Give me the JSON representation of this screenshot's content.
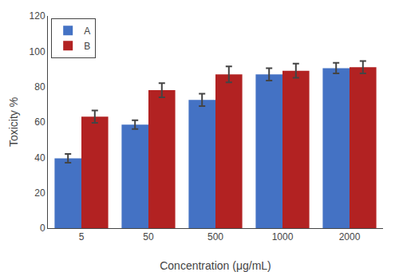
{
  "chart_data": {
    "type": "bar",
    "xlabel": "Concentration (μg/mL)",
    "ylabel": "Toxicity %",
    "categories": [
      "5",
      "50",
      "500",
      "1000",
      "2000"
    ],
    "series": [
      {
        "name": "A",
        "color": "#4472C4",
        "values": [
          39.5,
          58.5,
          72.5,
          87.0,
          90.5
        ],
        "errors": [
          2.5,
          2.5,
          3.5,
          3.5,
          3.0
        ]
      },
      {
        "name": "B",
        "color": "#B22222",
        "values": [
          63.0,
          78.0,
          87.0,
          89.0,
          91.0
        ],
        "errors": [
          3.5,
          4.0,
          4.5,
          4.0,
          3.5
        ]
      }
    ],
    "ylim": [
      0,
      120
    ],
    "yticks": [
      0,
      20,
      40,
      60,
      80,
      100,
      120
    ],
    "legend": "upper left",
    "grid": false
  }
}
